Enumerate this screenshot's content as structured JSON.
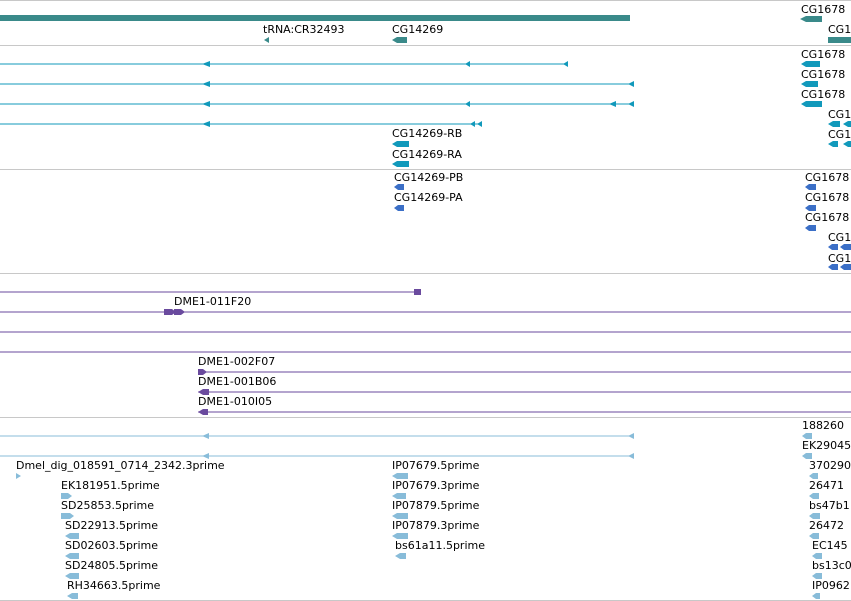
{
  "colors": {
    "gene": "#3a8a8a",
    "transcript": "#1199bb",
    "cds": "#3b6fc7",
    "clone": "#6a4a9e",
    "est": "#88bcd9",
    "separator": "#c8c8c8"
  },
  "gene_track": {
    "labels": [
      "tRNA:CR32493",
      "CG14269",
      "CG1678",
      "CG1"
    ]
  },
  "transcript_track": {
    "labels": [
      "CG1678",
      "CG1678",
      "CG1678",
      "CG1",
      "CG1",
      "CG14269-RB",
      "CG14269-RA"
    ]
  },
  "protein_track": {
    "labels": [
      "CG14269-PB",
      "CG14269-PA",
      "CG1678",
      "CG1678",
      "CG1678",
      "CG1",
      "CG1"
    ]
  },
  "clone_track": {
    "labels": [
      "DME1-011F20",
      "DME1-002F07",
      "DME1-001B06",
      "DME1-010I05"
    ]
  },
  "est_track": {
    "labels": [
      "188260",
      "EK29045",
      "Dmel_dig_018591_0714_2342.3prime",
      "IP07679.5prime",
      "370290",
      "EK181951.5prime",
      "IP07679.3prime",
      "26471",
      "SD25853.5prime",
      "IP07879.5prime",
      "bs47b1",
      "SD22913.5prime",
      "IP07879.3prime",
      "26472",
      "SD02603.5prime",
      "bs61a11.5prime",
      "EC145",
      "SD24805.5prime",
      "bs13c0",
      "RH34663.5prime",
      "IP0962"
    ]
  }
}
